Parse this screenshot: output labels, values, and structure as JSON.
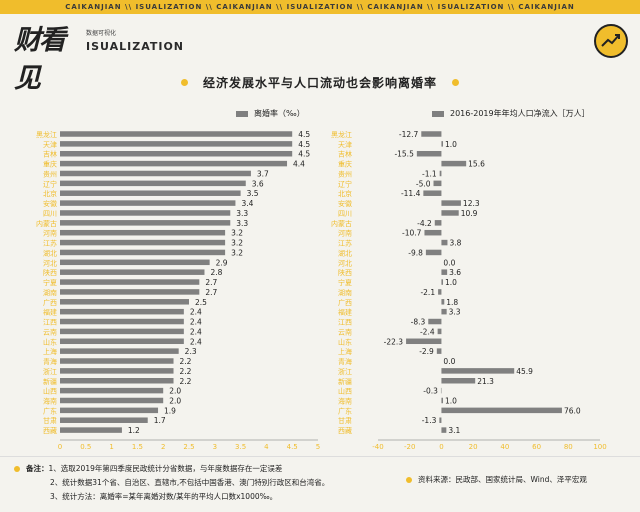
{
  "header": {
    "banner_text": "CAIKANJIAN \\\\ ISUALIZATION \\\\ CAIKANJIAN \\\\ ISUALIZATION \\\\ CAIKANJIAN \\\\ ISUALIZATION \\\\ CAIKANJIAN",
    "logo_text": "财看见",
    "logo_sub": "数据可视化",
    "logo_main": "ISUALIZATION"
  },
  "title": "经济发展水平与人口流动也会影响离婚率",
  "chart_data": [
    {
      "type": "bar",
      "orientation": "horizontal",
      "legend": "离婚率（‰）",
      "categories": [
        "黑龙江",
        "天津",
        "吉林",
        "重庆",
        "贵州",
        "辽宁",
        "北京",
        "安徽",
        "四川",
        "内蒙古",
        "河南",
        "江苏",
        "湖北",
        "河北",
        "陕西",
        "宁夏",
        "湖南",
        "广西",
        "福建",
        "江西",
        "云南",
        "山东",
        "上海",
        "青海",
        "浙江",
        "新疆",
        "山西",
        "海南",
        "广东",
        "甘肃",
        "西藏"
      ],
      "values": [
        4.5,
        4.5,
        4.5,
        4.4,
        3.7,
        3.6,
        3.5,
        3.4,
        3.3,
        3.3,
        3.2,
        3.2,
        3.2,
        2.9,
        2.8,
        2.7,
        2.7,
        2.5,
        2.4,
        2.4,
        2.4,
        2.4,
        2.3,
        2.2,
        2.2,
        2.2,
        2.0,
        2.0,
        1.9,
        1.7,
        1.2
      ],
      "xlim": [
        0,
        5
      ],
      "xticks": [
        "0",
        "0.5",
        "1",
        "1.5",
        "2",
        "2.5",
        "3",
        "3.5",
        "4",
        "4.5",
        "5"
      ],
      "grid": false,
      "bar_color": "#808080"
    },
    {
      "type": "bar",
      "orientation": "horizontal",
      "legend": "2016-2019年年均人口净流入［万人］",
      "categories": [
        "黑龙江",
        "天津",
        "吉林",
        "重庆",
        "贵州",
        "辽宁",
        "北京",
        "安徽",
        "四川",
        "内蒙古",
        "河南",
        "江苏",
        "湖北",
        "河北",
        "陕西",
        "宁夏",
        "湖南",
        "广西",
        "福建",
        "江西",
        "云南",
        "山东",
        "上海",
        "青海",
        "浙江",
        "新疆",
        "山西",
        "海南",
        "广东",
        "甘肃",
        "西藏"
      ],
      "values": [
        -12.7,
        1.0,
        -15.5,
        15.6,
        -1.1,
        -5.0,
        -11.4,
        12.3,
        10.9,
        -4.2,
        -10.7,
        3.8,
        -9.8,
        0.0,
        3.6,
        1.0,
        -2.1,
        1.8,
        3.3,
        -8.3,
        -2.4,
        -22.3,
        -2.9,
        0.0,
        45.9,
        21.3,
        -0.3,
        1.0,
        76.0,
        -1.3,
        3.1
      ],
      "value_labels": [
        "-12.7",
        "1.0",
        "-15.5",
        "15.6",
        "-1.1",
        "-5.0",
        "-11.4",
        "12.3",
        "10.9",
        "-4.2",
        "-10.7",
        "3.8",
        "-9.8",
        "0.0",
        "3.6",
        "1.0",
        "-2.1",
        "1.8",
        "3.3",
        "-8.3",
        "-2.4",
        "-22.3",
        "-2.9",
        "0.0",
        "45.9",
        "21.3",
        "-0.3",
        "1.0",
        "76.0",
        "-1.3",
        "3.1"
      ],
      "xlim": [
        -40,
        100
      ],
      "xticks": [
        "-40",
        "-20",
        "0",
        "20",
        "40",
        "60",
        "80",
        "100"
      ],
      "grid": false,
      "bar_color": "#808080",
      "category_label_color": "#f0bd2c"
    }
  ],
  "footer": {
    "note_lead": "备注：",
    "note1": "1、选取2019年第四季度民政统计分省数据，与年度数据存在一定误差",
    "note2": "2、统计数据31个省、自治区、直辖市,不包括中国香港、澳门特别行政区和台湾省。",
    "note3": "3、统计方法：离婚率=某年离婚对数/某年的平均人口数x1000‰。",
    "source": "资料来源：民政部、国家统计局、Wind、泽平宏观"
  }
}
